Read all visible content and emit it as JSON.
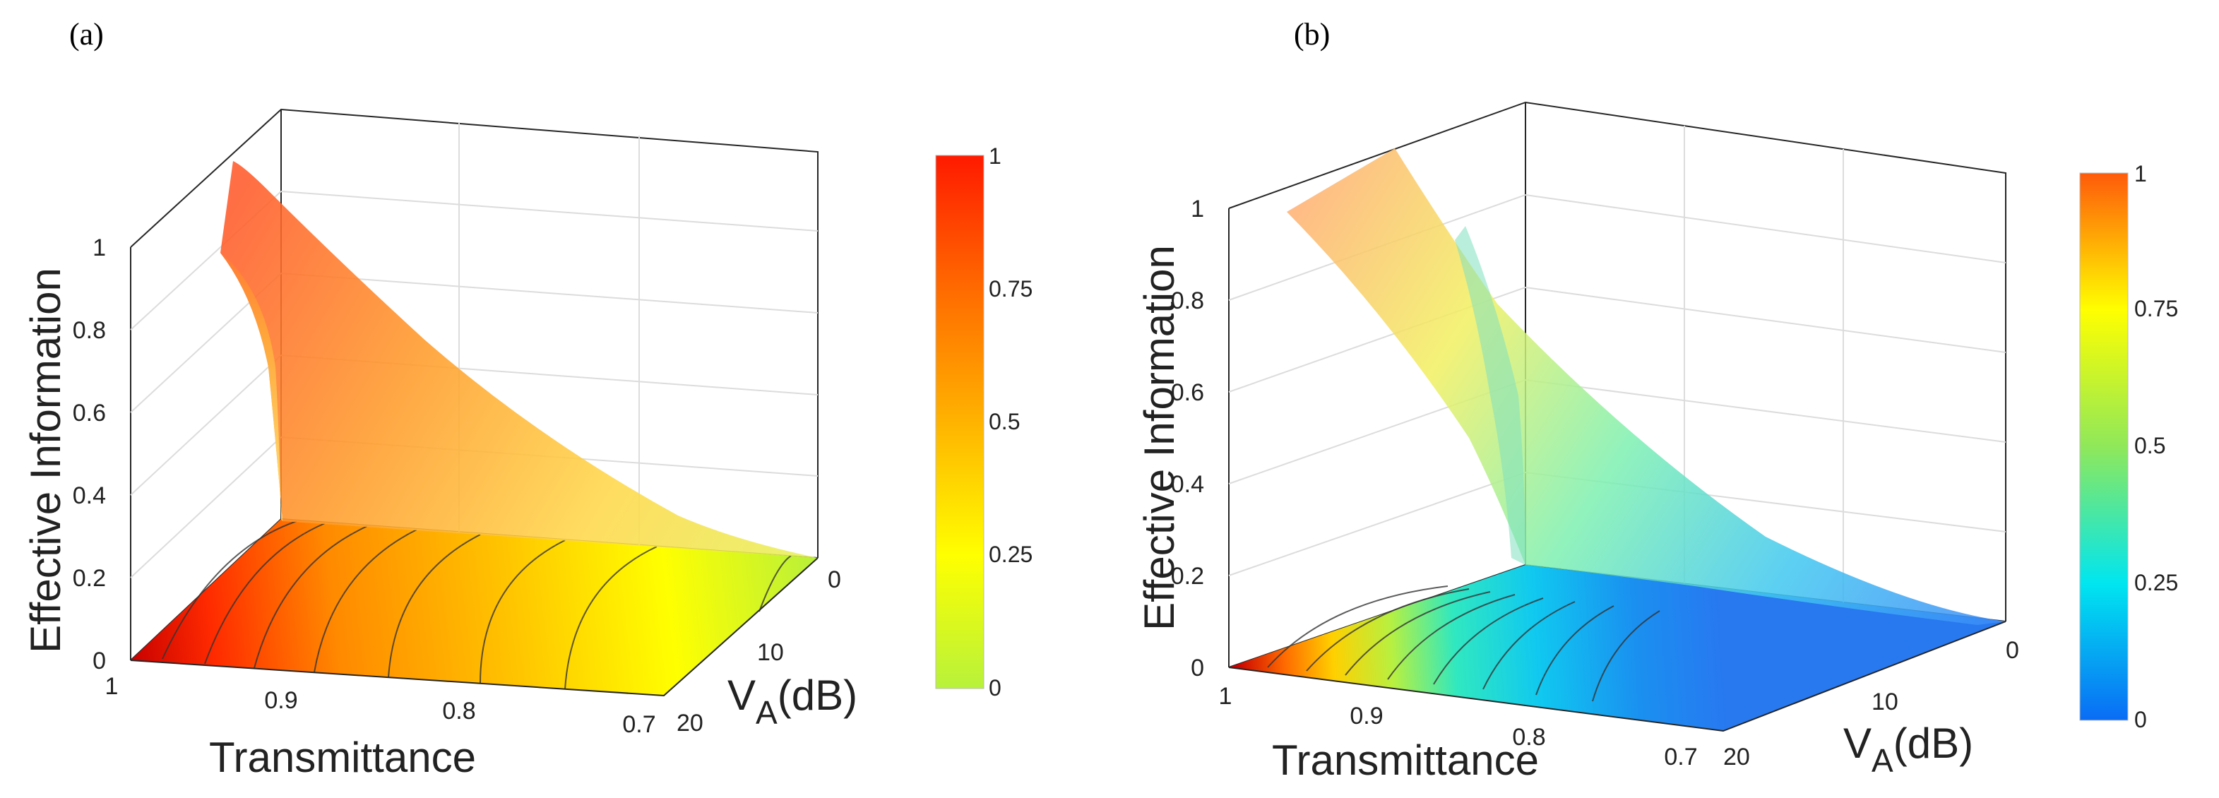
{
  "chart_data": [
    {
      "panel_label": "(a)",
      "type": "surface3d",
      "zlabel": "Effective Information",
      "xlabel": "Transmittance",
      "ylabel_main": "V",
      "ylabel_sub": "A",
      "ylabel_unit": "(dB)",
      "x_ticks": [
        "1",
        "0.9",
        "0.8",
        "0.7"
      ],
      "x_range": [
        0.7,
        1.0
      ],
      "y_ticks": [
        "0",
        "10",
        "20"
      ],
      "y_range": [
        0,
        20
      ],
      "z_ticks": [
        "0",
        "0.2",
        "0.4",
        "0.6",
        "0.8",
        "1"
      ],
      "z_range": [
        0,
        1
      ],
      "colorbar_ticks": [
        "0",
        "0.25",
        "0.5",
        "0.75",
        "1"
      ],
      "colormap": "autumn",
      "colormap_stops": [
        "#b7f23b",
        "#ffff00",
        "#ffb300",
        "#ff6a00",
        "#ff1a00"
      ],
      "surface_peak_value": 1.0
    },
    {
      "panel_label": "(b)",
      "type": "surface3d",
      "zlabel": "Effective Information",
      "xlabel": "Transmittance",
      "ylabel_main": "V",
      "ylabel_sub": "A",
      "ylabel_unit": "(dB)",
      "x_ticks": [
        "1",
        "0.9",
        "0.8",
        "0.7"
      ],
      "x_range": [
        0.7,
        1.0
      ],
      "y_ticks": [
        "0",
        "10",
        "20"
      ],
      "y_range": [
        0,
        20
      ],
      "z_ticks": [
        "0",
        "0.2",
        "0.4",
        "0.6",
        "0.8",
        "1"
      ],
      "z_range": [
        0,
        1
      ],
      "colorbar_ticks": [
        "0",
        "0.25",
        "0.5",
        "0.75",
        "1"
      ],
      "colormap": "jet",
      "colormap_stops": [
        "#0a6cf5",
        "#00e6f0",
        "#8fe85a",
        "#ffff00",
        "#ff5a0a"
      ],
      "surface_peak_value": 1.0
    }
  ]
}
